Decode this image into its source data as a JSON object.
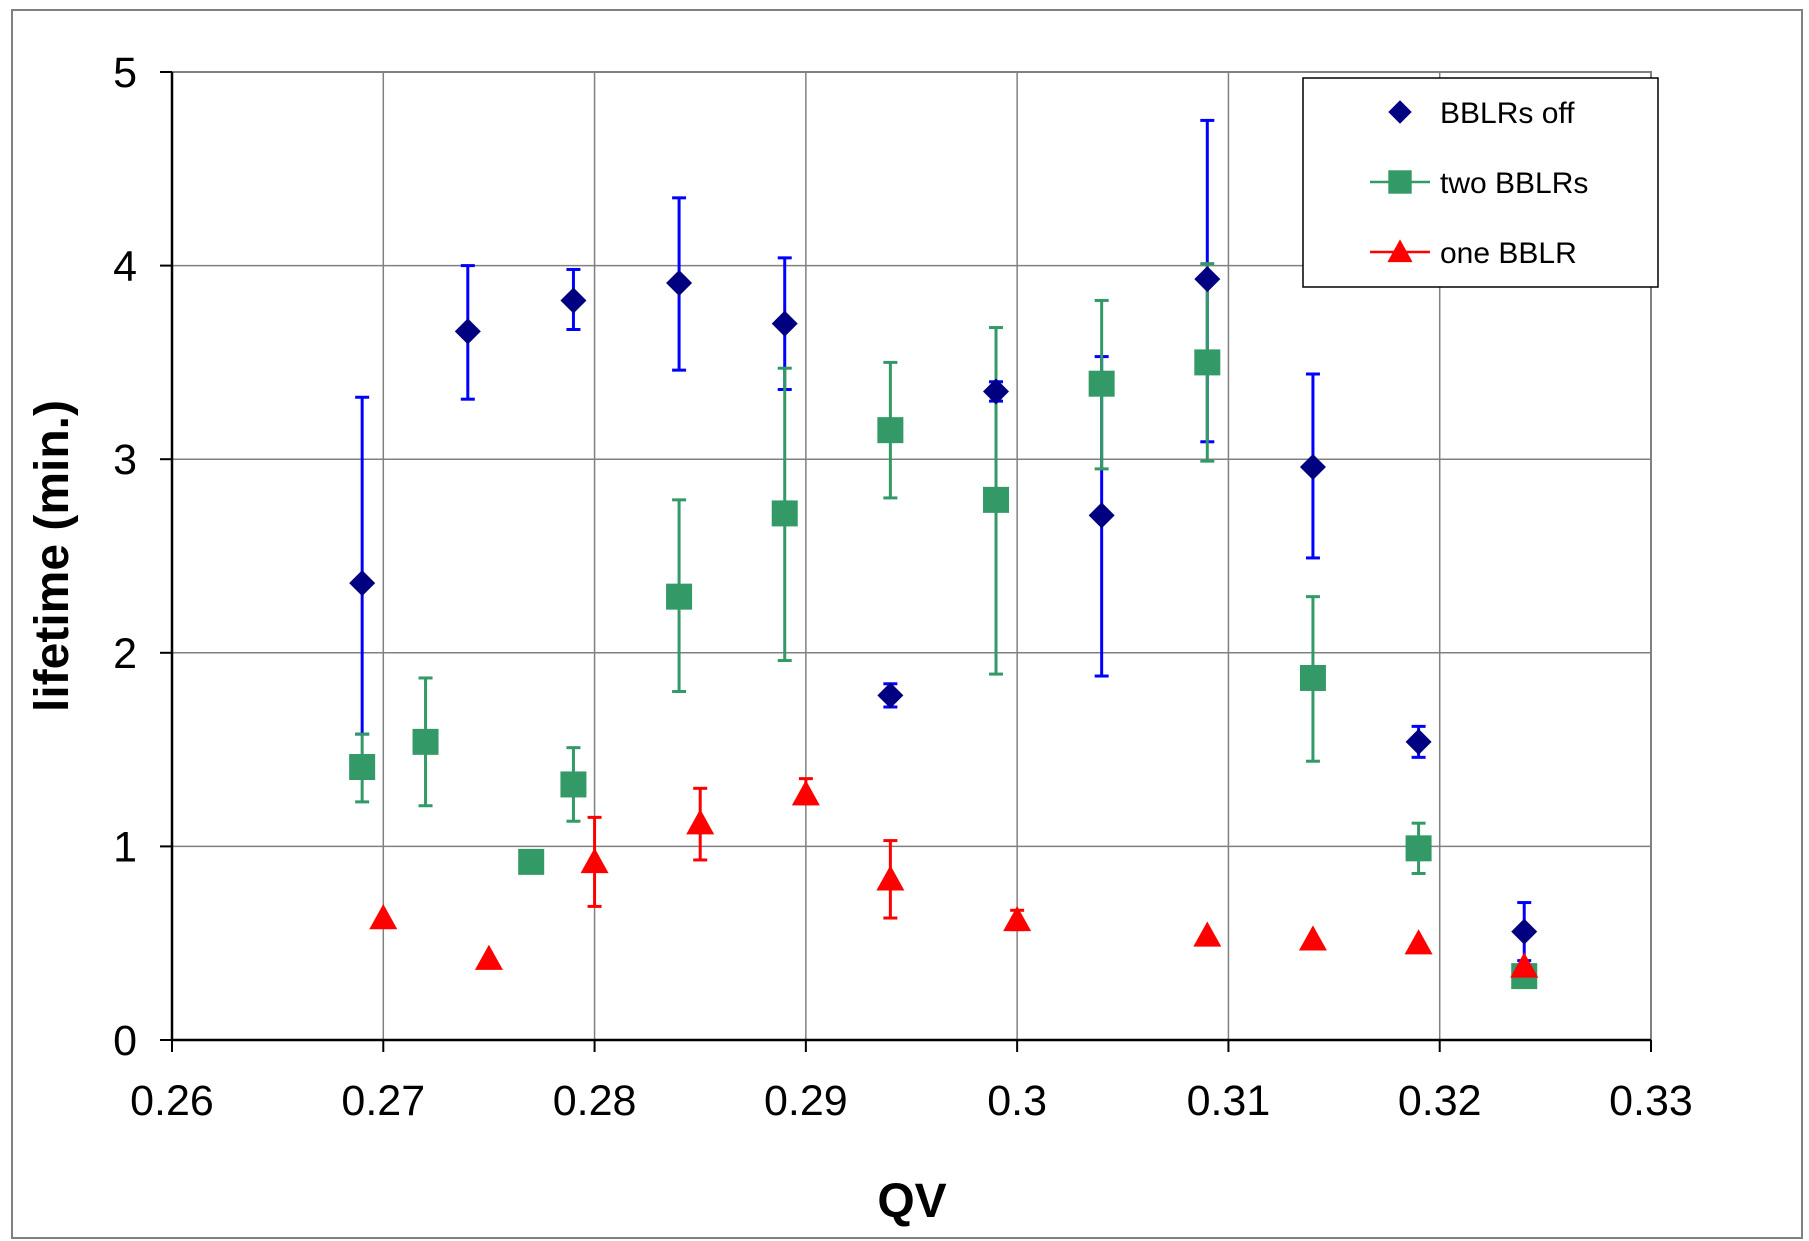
{
  "chart_data": {
    "type": "scatter",
    "title": "",
    "xlabel": "QV",
    "ylabel": "lifetime (min.)",
    "xlim": [
      0.26,
      0.33
    ],
    "ylim": [
      0,
      5
    ],
    "xticks": [
      0.26,
      0.27,
      0.28,
      0.29,
      0.3,
      0.31,
      0.32,
      0.33
    ],
    "xtick_labels": [
      "0.26",
      "0.27",
      "0.28",
      "0.29",
      "0.3",
      "0.31",
      "0.32",
      "0.33"
    ],
    "yticks": [
      0,
      1,
      2,
      3,
      4,
      5
    ],
    "ytick_labels": [
      "0",
      "1",
      "2",
      "3",
      "4",
      "5"
    ],
    "grid": true,
    "legend_position": "top-right",
    "series": [
      {
        "name": "BBLRs off",
        "marker": "diamond",
        "color": "#000080",
        "error_color": "#0000ff",
        "points": [
          {
            "x": 0.269,
            "y": 2.36,
            "ylo": 1.58,
            "yhi": 3.32
          },
          {
            "x": 0.274,
            "y": 3.66,
            "ylo": 3.31,
            "yhi": 4.0
          },
          {
            "x": 0.279,
            "y": 3.82,
            "ylo": 3.67,
            "yhi": 3.98
          },
          {
            "x": 0.284,
            "y": 3.91,
            "ylo": 3.46,
            "yhi": 4.35
          },
          {
            "x": 0.289,
            "y": 3.7,
            "ylo": 3.36,
            "yhi": 4.04
          },
          {
            "x": 0.294,
            "y": 1.78,
            "ylo": 1.72,
            "yhi": 1.84
          },
          {
            "x": 0.299,
            "y": 3.35,
            "ylo": 3.3,
            "yhi": 3.4
          },
          {
            "x": 0.304,
            "y": 2.71,
            "ylo": 1.88,
            "yhi": 3.53
          },
          {
            "x": 0.309,
            "y": 3.93,
            "ylo": 3.09,
            "yhi": 4.75
          },
          {
            "x": 0.314,
            "y": 2.96,
            "ylo": 2.49,
            "yhi": 3.44
          },
          {
            "x": 0.319,
            "y": 1.54,
            "ylo": 1.46,
            "yhi": 1.62
          },
          {
            "x": 0.324,
            "y": 0.56,
            "ylo": 0.41,
            "yhi": 0.71
          }
        ]
      },
      {
        "name": "two BBLRs",
        "marker": "square",
        "color": "#339966",
        "error_color": "#339966",
        "points": [
          {
            "x": 0.269,
            "y": 1.41,
            "ylo": 1.23,
            "yhi": 1.58
          },
          {
            "x": 0.272,
            "y": 1.54,
            "ylo": 1.21,
            "yhi": 1.87
          },
          {
            "x": 0.277,
            "y": 0.92
          },
          {
            "x": 0.279,
            "y": 1.32,
            "ylo": 1.13,
            "yhi": 1.51
          },
          {
            "x": 0.284,
            "y": 2.29,
            "ylo": 1.8,
            "yhi": 2.79
          },
          {
            "x": 0.289,
            "y": 2.72,
            "ylo": 1.96,
            "yhi": 3.47
          },
          {
            "x": 0.294,
            "y": 3.15,
            "ylo": 2.8,
            "yhi": 3.5
          },
          {
            "x": 0.299,
            "y": 2.79,
            "ylo": 1.89,
            "yhi": 3.68
          },
          {
            "x": 0.304,
            "y": 3.39,
            "ylo": 2.95,
            "yhi": 3.82
          },
          {
            "x": 0.309,
            "y": 3.5,
            "ylo": 2.99,
            "yhi": 4.01
          },
          {
            "x": 0.314,
            "y": 1.87,
            "ylo": 1.44,
            "yhi": 2.29
          },
          {
            "x": 0.319,
            "y": 0.99,
            "ylo": 0.86,
            "yhi": 1.12
          },
          {
            "x": 0.324,
            "y": 0.33
          }
        ]
      },
      {
        "name": "one BBLR",
        "marker": "triangle",
        "color": "#ff0000",
        "error_color": "#ff0000",
        "points": [
          {
            "x": 0.27,
            "y": 0.63
          },
          {
            "x": 0.275,
            "y": 0.42
          },
          {
            "x": 0.28,
            "y": 0.92,
            "ylo": 0.69,
            "yhi": 1.15
          },
          {
            "x": 0.285,
            "y": 1.12,
            "ylo": 0.93,
            "yhi": 1.3
          },
          {
            "x": 0.29,
            "y": 1.27,
            "ylo": 1.22,
            "yhi": 1.35
          },
          {
            "x": 0.294,
            "y": 0.83,
            "ylo": 0.63,
            "yhi": 1.03
          },
          {
            "x": 0.3,
            "y": 0.62,
            "ylo": 0.57,
            "yhi": 0.67
          },
          {
            "x": 0.309,
            "y": 0.54
          },
          {
            "x": 0.314,
            "y": 0.52
          },
          {
            "x": 0.319,
            "y": 0.5
          },
          {
            "x": 0.324,
            "y": 0.38
          }
        ]
      }
    ]
  }
}
